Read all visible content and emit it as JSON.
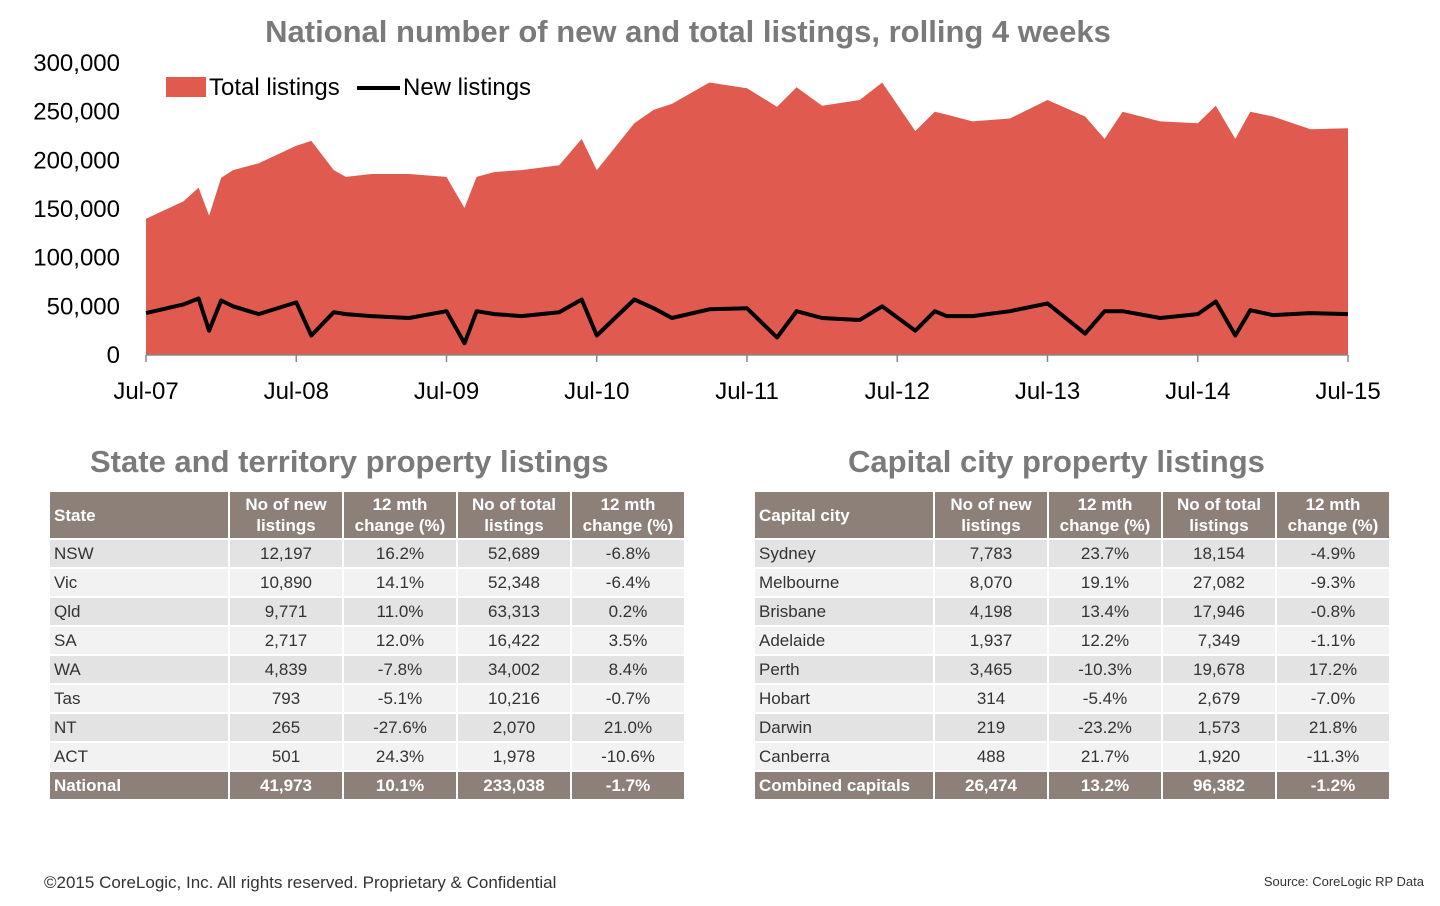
{
  "chart_data": {
    "type": "area",
    "title": "National number of new and total listings, rolling 4 weeks",
    "xlabel": "",
    "ylabel": "",
    "ylim": [
      0,
      300000
    ],
    "yticks": [
      "0",
      "50,000",
      "100,000",
      "150,000",
      "200,000",
      "250,000",
      "300,000"
    ],
    "xticks": [
      "Jul-07",
      "Jul-08",
      "Jul-09",
      "Jul-10",
      "Jul-11",
      "Jul-12",
      "Jul-13",
      "Jul-14",
      "Jul-15"
    ],
    "x": [
      2007.5,
      2007.75,
      2007.85,
      2007.92,
      2008.0,
      2008.08,
      2008.25,
      2008.5,
      2008.6,
      2008.75,
      2008.83,
      2009.0,
      2009.25,
      2009.5,
      2009.62,
      2009.7,
      2009.82,
      2010.0,
      2010.25,
      2010.4,
      2010.5,
      2010.75,
      2010.88,
      2011.0,
      2011.25,
      2011.5,
      2011.7,
      2011.83,
      2012.0,
      2012.25,
      2012.4,
      2012.62,
      2012.75,
      2012.83,
      2013.0,
      2013.25,
      2013.5,
      2013.75,
      2013.88,
      2014.0,
      2014.25,
      2014.5,
      2014.62,
      2014.75,
      2014.85,
      2015.0,
      2015.25,
      2015.5
    ],
    "series": [
      {
        "name": "Total listings",
        "color": "#e15a4f",
        "values": [
          140000,
          158000,
          172000,
          143000,
          182000,
          190000,
          197000,
          215000,
          220000,
          190000,
          183000,
          186000,
          186000,
          183000,
          151000,
          183000,
          188000,
          190000,
          195000,
          222000,
          190000,
          238000,
          252000,
          258000,
          280000,
          274000,
          255000,
          275000,
          256000,
          262000,
          280000,
          230000,
          250000,
          247000,
          240000,
          243000,
          262000,
          245000,
          222000,
          250000,
          240000,
          238000,
          256000,
          222000,
          250000,
          245000,
          232000,
          233000
        ]
      },
      {
        "name": "New listings",
        "color": "#000000",
        "values": [
          43000,
          52000,
          58000,
          25000,
          56000,
          50000,
          42000,
          54000,
          20000,
          44000,
          42000,
          40000,
          38000,
          45000,
          12000,
          45000,
          42000,
          40000,
          44000,
          57000,
          20000,
          57000,
          48000,
          38000,
          47000,
          48000,
          18000,
          45000,
          38000,
          36000,
          50000,
          25000,
          45000,
          40000,
          40000,
          45000,
          53000,
          22000,
          45000,
          45000,
          38000,
          42000,
          55000,
          20000,
          46000,
          41000,
          43000,
          42000
        ]
      }
    ],
    "grid": false,
    "legend_position": "top-left"
  },
  "state_section": {
    "title": "State and territory property listings",
    "headers": [
      "State",
      "No of new listings",
      "12 mth change (%)",
      "No of total listings",
      "12 mth change (%)"
    ],
    "rows": [
      [
        "NSW",
        "12,197",
        "16.2%",
        "52,689",
        "-6.8%"
      ],
      [
        "Vic",
        "10,890",
        "14.1%",
        "52,348",
        "-6.4%"
      ],
      [
        "Qld",
        "9,771",
        "11.0%",
        "63,313",
        "0.2%"
      ],
      [
        "SA",
        "2,717",
        "12.0%",
        "16,422",
        "3.5%"
      ],
      [
        "WA",
        "4,839",
        "-7.8%",
        "34,002",
        "8.4%"
      ],
      [
        "Tas",
        "793",
        "-5.1%",
        "10,216",
        "-0.7%"
      ],
      [
        "NT",
        "265",
        "-27.6%",
        "2,070",
        "21.0%"
      ],
      [
        "ACT",
        "501",
        "24.3%",
        "1,978",
        "-10.6%"
      ]
    ],
    "total": [
      "National",
      "41,973",
      "10.1%",
      "233,038",
      "-1.7%"
    ]
  },
  "capital_section": {
    "title": "Capital city property listings",
    "headers": [
      "Capital city",
      "No of new listings",
      "12 mth change (%)",
      "No of total listings",
      "12 mth change (%)"
    ],
    "rows": [
      [
        "Sydney",
        "7,783",
        "23.7%",
        "18,154",
        "-4.9%"
      ],
      [
        "Melbourne",
        "8,070",
        "19.1%",
        "27,082",
        "-9.3%"
      ],
      [
        "Brisbane",
        "4,198",
        "13.4%",
        "17,946",
        "-0.8%"
      ],
      [
        "Adelaide",
        "1,937",
        "12.2%",
        "7,349",
        "-1.1%"
      ],
      [
        "Perth",
        "3,465",
        "-10.3%",
        "19,678",
        "17.2%"
      ],
      [
        "Hobart",
        "314",
        "-5.4%",
        "2,679",
        "-7.0%"
      ],
      [
        "Darwin",
        "219",
        "-23.2%",
        "1,573",
        "21.8%"
      ],
      [
        "Canberra",
        "488",
        "21.7%",
        "1,920",
        "-11.3%"
      ]
    ],
    "total": [
      "Combined capitals",
      "26,474",
      "13.2%",
      "96,382",
      "-1.2%"
    ]
  },
  "footer": {
    "copyright": "©2015 CoreLogic, Inc. All rights reserved. Proprietary & Confidential",
    "source": "Source: CoreLogic RP Data"
  }
}
